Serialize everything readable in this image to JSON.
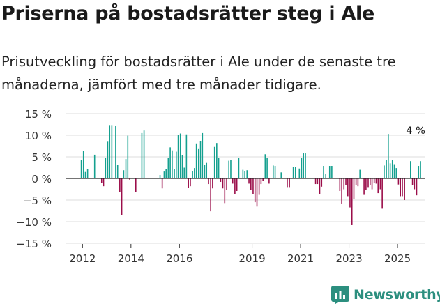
{
  "title": "Priserna på bostadsrätter steg i Ale",
  "subtitle": "Prisutveckling för bostadsrätter i Ale under de senaste tre månaderna, jämfört med tre månader tidigare.",
  "brand": {
    "name": "Newsworthy",
    "icon": "newsworthy-logo-icon"
  },
  "colors": {
    "positive": "#14a08f",
    "negative": "#9b0e4a",
    "grid": "#dddddd",
    "text": "#333333",
    "brand": "#2c8f7f"
  },
  "chart_data": {
    "type": "bar",
    "title": "Priserna på bostadsrätter steg i Ale",
    "xlabel": "",
    "ylabel": "",
    "ylim": [
      -15,
      15
    ],
    "yticks": [
      -15,
      -10,
      -5,
      0,
      5,
      10,
      15
    ],
    "ytick_labels": [
      "−15 %",
      "−10 %",
      "−5 %",
      "0 %",
      "5 %",
      "10 %",
      "15 %"
    ],
    "xlim": [
      2011.3,
      2026.15
    ],
    "xticks": [
      2012,
      2014,
      2016,
      2019,
      2021,
      2023,
      2025
    ],
    "xtick_labels": [
      "2012",
      "2014",
      "2016",
      "2019",
      "2021",
      "2023",
      "2025"
    ],
    "annotation": {
      "text": "4 %",
      "x": 2025.75,
      "y": 4
    },
    "series": [
      {
        "name": "Prisutveckling",
        "points": [
          {
            "x": 2011.95,
            "y": 4.2
          },
          {
            "x": 2012.04,
            "y": 6.3
          },
          {
            "x": 2012.12,
            "y": 1.5
          },
          {
            "x": 2012.21,
            "y": 2.2
          },
          {
            "x": 2012.5,
            "y": 5.5
          },
          {
            "x": 2012.79,
            "y": -1
          },
          {
            "x": 2012.87,
            "y": -1.8
          },
          {
            "x": 2012.95,
            "y": 4.8
          },
          {
            "x": 2013.04,
            "y": 8.5
          },
          {
            "x": 2013.12,
            "y": 12.2
          },
          {
            "x": 2013.21,
            "y": 12.2
          },
          {
            "x": 2013.37,
            "y": 12.1
          },
          {
            "x": 2013.45,
            "y": 3.2
          },
          {
            "x": 2013.54,
            "y": -3.2
          },
          {
            "x": 2013.62,
            "y": -8.5
          },
          {
            "x": 2013.7,
            "y": 1.9
          },
          {
            "x": 2013.79,
            "y": 4.5
          },
          {
            "x": 2013.87,
            "y": 9.9
          },
          {
            "x": 2013.95,
            "y": -0.3
          },
          {
            "x": 2014.2,
            "y": -3.2
          },
          {
            "x": 2014.45,
            "y": 10.5
          },
          {
            "x": 2014.54,
            "y": 11.1
          },
          {
            "x": 2015.2,
            "y": 0.8
          },
          {
            "x": 2015.29,
            "y": -2.3
          },
          {
            "x": 2015.37,
            "y": 1.6
          },
          {
            "x": 2015.45,
            "y": 2.2
          },
          {
            "x": 2015.54,
            "y": 4.8
          },
          {
            "x": 2015.62,
            "y": 7.2
          },
          {
            "x": 2015.7,
            "y": 6.5
          },
          {
            "x": 2015.79,
            "y": 2.1
          },
          {
            "x": 2015.87,
            "y": 6.2
          },
          {
            "x": 2015.95,
            "y": 10
          },
          {
            "x": 2016.04,
            "y": 10.4
          },
          {
            "x": 2016.12,
            "y": 5.4
          },
          {
            "x": 2016.2,
            "y": 2.5
          },
          {
            "x": 2016.29,
            "y": 10.2
          },
          {
            "x": 2016.37,
            "y": -2.2
          },
          {
            "x": 2016.45,
            "y": -1.8
          },
          {
            "x": 2016.54,
            "y": 1.7
          },
          {
            "x": 2016.62,
            "y": 2.4
          },
          {
            "x": 2016.7,
            "y": 8.1
          },
          {
            "x": 2016.79,
            "y": 6.8
          },
          {
            "x": 2016.87,
            "y": 8.7
          },
          {
            "x": 2016.95,
            "y": 10.5
          },
          {
            "x": 2017.04,
            "y": 3.2
          },
          {
            "x": 2017.12,
            "y": 3.6
          },
          {
            "x": 2017.2,
            "y": -1.3
          },
          {
            "x": 2017.29,
            "y": -7.6
          },
          {
            "x": 2017.37,
            "y": -2.3
          },
          {
            "x": 2017.45,
            "y": 7.3
          },
          {
            "x": 2017.54,
            "y": 8.2
          },
          {
            "x": 2017.62,
            "y": 4.8
          },
          {
            "x": 2017.7,
            "y": -0.8
          },
          {
            "x": 2017.79,
            "y": -2.3
          },
          {
            "x": 2017.87,
            "y": -5.7
          },
          {
            "x": 2017.95,
            "y": -2.6
          },
          {
            "x": 2018.04,
            "y": 4.1
          },
          {
            "x": 2018.12,
            "y": 4.3
          },
          {
            "x": 2018.2,
            "y": -1.2
          },
          {
            "x": 2018.29,
            "y": -3.6
          },
          {
            "x": 2018.37,
            "y": -2.9
          },
          {
            "x": 2018.45,
            "y": 4.8
          },
          {
            "x": 2018.62,
            "y": 2
          },
          {
            "x": 2018.7,
            "y": 1.7
          },
          {
            "x": 2018.79,
            "y": 1.9
          },
          {
            "x": 2018.87,
            "y": -1.2
          },
          {
            "x": 2018.95,
            "y": -2.7
          },
          {
            "x": 2019.04,
            "y": -3.7
          },
          {
            "x": 2019.12,
            "y": -5.5
          },
          {
            "x": 2019.2,
            "y": -6.5
          },
          {
            "x": 2019.29,
            "y": -3.8
          },
          {
            "x": 2019.37,
            "y": -1.3
          },
          {
            "x": 2019.45,
            "y": -0.5
          },
          {
            "x": 2019.54,
            "y": 5.6
          },
          {
            "x": 2019.62,
            "y": 4.8
          },
          {
            "x": 2019.7,
            "y": -1.2
          },
          {
            "x": 2019.87,
            "y": 3
          },
          {
            "x": 2019.95,
            "y": 2.9
          },
          {
            "x": 2020.2,
            "y": 1.4
          },
          {
            "x": 2020.45,
            "y": -2
          },
          {
            "x": 2020.54,
            "y": -2
          },
          {
            "x": 2020.7,
            "y": 2.6
          },
          {
            "x": 2020.79,
            "y": 2.6
          },
          {
            "x": 2020.95,
            "y": 2.3
          },
          {
            "x": 2021.04,
            "y": 4.8
          },
          {
            "x": 2021.12,
            "y": 5.8
          },
          {
            "x": 2021.2,
            "y": 5.8
          },
          {
            "x": 2021.62,
            "y": -1.3
          },
          {
            "x": 2021.7,
            "y": -1.3
          },
          {
            "x": 2021.79,
            "y": -3.6
          },
          {
            "x": 2021.87,
            "y": -1.9
          },
          {
            "x": 2021.95,
            "y": 2.9
          },
          {
            "x": 2022.04,
            "y": 1
          },
          {
            "x": 2022.2,
            "y": 2.9
          },
          {
            "x": 2022.29,
            "y": 2.9
          },
          {
            "x": 2022.62,
            "y": -2.9
          },
          {
            "x": 2022.7,
            "y": -5.8
          },
          {
            "x": 2022.79,
            "y": -2.5
          },
          {
            "x": 2022.87,
            "y": -1.5
          },
          {
            "x": 2022.95,
            "y": -4.1
          },
          {
            "x": 2023.04,
            "y": -6.7
          },
          {
            "x": 2023.12,
            "y": -10.8
          },
          {
            "x": 2023.2,
            "y": -4.8
          },
          {
            "x": 2023.29,
            "y": -1.5
          },
          {
            "x": 2023.37,
            "y": -1.8
          },
          {
            "x": 2023.45,
            "y": 2
          },
          {
            "x": 2023.62,
            "y": -3.8
          },
          {
            "x": 2023.7,
            "y": -2.7
          },
          {
            "x": 2023.79,
            "y": -2
          },
          {
            "x": 2023.87,
            "y": -1.6
          },
          {
            "x": 2023.95,
            "y": -2.5
          },
          {
            "x": 2024.04,
            "y": -1
          },
          {
            "x": 2024.12,
            "y": -1.2
          },
          {
            "x": 2024.2,
            "y": -3.4
          },
          {
            "x": 2024.29,
            "y": -2.5
          },
          {
            "x": 2024.37,
            "y": -7
          },
          {
            "x": 2024.45,
            "y": 3
          },
          {
            "x": 2024.54,
            "y": 4.2
          },
          {
            "x": 2024.62,
            "y": 10.3
          },
          {
            "x": 2024.7,
            "y": 3.5
          },
          {
            "x": 2024.79,
            "y": 4.2
          },
          {
            "x": 2024.87,
            "y": 3.3
          },
          {
            "x": 2024.95,
            "y": 2.4
          },
          {
            "x": 2025.04,
            "y": -1.4
          },
          {
            "x": 2025.12,
            "y": -4.1
          },
          {
            "x": 2025.2,
            "y": -4.1
          },
          {
            "x": 2025.29,
            "y": -5
          },
          {
            "x": 2025.54,
            "y": 4
          },
          {
            "x": 2025.62,
            "y": -1.5
          },
          {
            "x": 2025.7,
            "y": -2.5
          },
          {
            "x": 2025.79,
            "y": -3.9
          },
          {
            "x": 2025.87,
            "y": 2.9
          },
          {
            "x": 2025.95,
            "y": 4
          }
        ]
      }
    ]
  }
}
